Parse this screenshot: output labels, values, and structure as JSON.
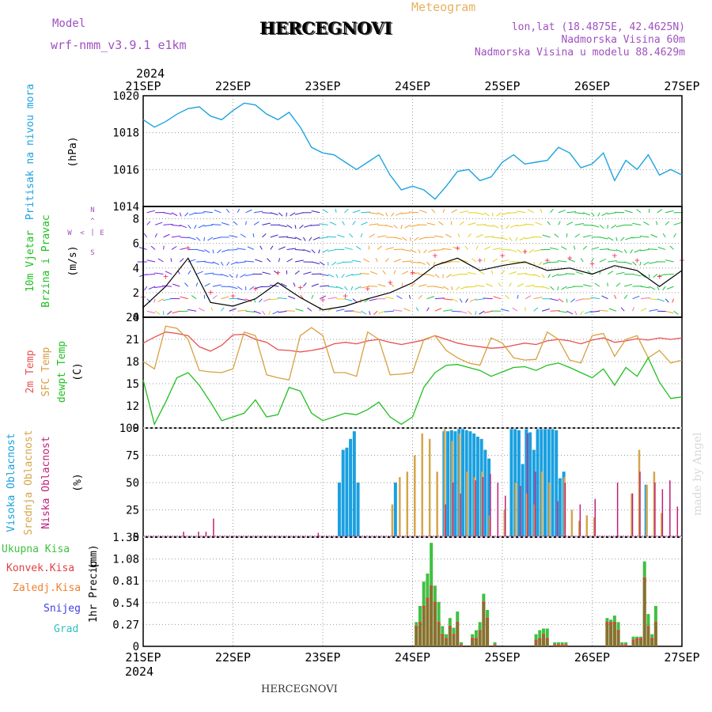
{
  "header": {
    "model_label": "Model",
    "model_name": "wrf-nmm_v3.9.1 e1km",
    "station": "HERCEGNOVI",
    "chart_kind": "Meteogram",
    "lonlat": "lon,lat (18.4875E, 42.4625N)",
    "elevation": "Nadmorska Visina 60m",
    "elevation_model": "Nadmorska Visina u modelu 88.4629m",
    "footer_station": "HERCEGNOVI",
    "watermark": "made by Angel"
  },
  "colors": {
    "pressure": "#1ca3e0",
    "wind_10m": "#20c020",
    "temp_2m": "#e85050",
    "temp_sfc": "#d8a040",
    "temp_dew": "#20c020",
    "cloud_high": "#1aa0e0",
    "cloud_mid": "#d4a64a",
    "cloud_low": "#c0207a",
    "precip_total": "#40c040",
    "precip_conv": "#e04040",
    "precip_frz": "#f08030",
    "precip_snow": "#4040e0",
    "precip_grad": "#30c0c0",
    "model_purple": "#a050c0",
    "meteogram_orange": "#e8b060"
  },
  "chart_data": [
    {
      "type": "line",
      "panel": "pressure",
      "ylabel_name": "Pritisak na nivou mora",
      "ylabel_unit": "(hPa)",
      "ylim": [
        1014,
        1020
      ],
      "yticks": [
        "1014",
        "1016",
        "1018",
        "1020"
      ],
      "x_hours": [
        0,
        3,
        6,
        9,
        12,
        15,
        18,
        21,
        24,
        27,
        30,
        33,
        36,
        39,
        42,
        45,
        48,
        51,
        54,
        57,
        60,
        63,
        66,
        69,
        72,
        75,
        78,
        81,
        84,
        87,
        90,
        93,
        96,
        99,
        102,
        105,
        108,
        111,
        114,
        117,
        120,
        123,
        126,
        129,
        132,
        135,
        138,
        141,
        144
      ],
      "values": [
        1018.7,
        1018.3,
        1018.6,
        1019.0,
        1019.3,
        1019.4,
        1018.9,
        1018.7,
        1019.2,
        1019.6,
        1019.5,
        1019.0,
        1018.7,
        1019.1,
        1018.3,
        1017.2,
        1016.9,
        1016.8,
        1016.4,
        1016.0,
        1016.4,
        1016.8,
        1015.7,
        1014.9,
        1015.1,
        1014.9,
        1014.4,
        1015.1,
        1015.9,
        1016.0,
        1015.4,
        1015.6,
        1016.4,
        1016.8,
        1016.3,
        1016.4,
        1016.5,
        1017.2,
        1016.9,
        1016.1,
        1016.3,
        1016.9,
        1015.4,
        1016.5,
        1016.0,
        1016.8,
        1015.7,
        1016.0,
        1015.7
      ]
    },
    {
      "type": "line",
      "panel": "wind",
      "ylabel_name1": "10m Vjetar",
      "ylabel_name2": "Brzina i Pravac",
      "ylabel_unit": "(m/s)",
      "compass": [
        "N",
        "^",
        "|",
        "<",
        "E",
        "W",
        "S"
      ],
      "ylim": [
        0,
        9
      ],
      "yticks": [
        "0",
        "2",
        "4",
        "6",
        "8"
      ],
      "x_hours": [
        0,
        6,
        12,
        18,
        24,
        30,
        36,
        42,
        48,
        54,
        60,
        66,
        72,
        78,
        84,
        90,
        96,
        102,
        108,
        114,
        120,
        126,
        132,
        138,
        144
      ],
      "speed": [
        0.8,
        2.5,
        4.8,
        1.2,
        0.9,
        1.5,
        2.8,
        1.6,
        0.6,
        0.9,
        1.5,
        2.0,
        2.8,
        4.2,
        4.8,
        3.8,
        4.2,
        4.5,
        3.8,
        4.0,
        3.5,
        4.2,
        3.8,
        2.5,
        3.8
      ]
    },
    {
      "type": "line",
      "panel": "temperature",
      "ylabel_name1": "2m Temp",
      "ylabel_name2": "SFC Temp",
      "ylabel_name3": "dewpt Temp",
      "ylabel_unit": "(C)",
      "ylim": [
        9,
        24
      ],
      "yticks": [
        "9",
        "12",
        "15",
        "18",
        "21",
        "24"
      ],
      "x_hours": [
        0,
        3,
        6,
        9,
        12,
        15,
        18,
        21,
        24,
        27,
        30,
        33,
        36,
        39,
        42,
        45,
        48,
        51,
        54,
        57,
        60,
        63,
        66,
        69,
        72,
        75,
        78,
        81,
        84,
        87,
        90,
        93,
        96,
        99,
        102,
        105,
        108,
        111,
        114,
        117,
        120,
        123,
        126,
        129,
        132,
        135,
        138,
        141,
        144
      ],
      "series": [
        {
          "name": "2m Temp",
          "values": [
            20.5,
            21.3,
            22.0,
            21.8,
            21.5,
            20.0,
            19.4,
            20.2,
            21.6,
            21.7,
            21.0,
            20.6,
            19.6,
            19.5,
            19.3,
            19.5,
            19.8,
            20.4,
            20.6,
            20.4,
            20.8,
            21.0,
            20.6,
            20.3,
            20.6,
            20.9,
            21.5,
            21.0,
            20.5,
            20.2,
            20.0,
            19.8,
            19.9,
            20.2,
            20.5,
            20.3,
            20.8,
            21.0,
            20.8,
            20.4,
            20.9,
            21.2,
            20.6,
            20.8,
            21.1,
            20.9,
            21.2,
            21.0,
            21.2
          ]
        },
        {
          "name": "SFC Temp",
          "values": [
            18.0,
            17.0,
            22.8,
            22.5,
            21.0,
            16.8,
            16.6,
            16.5,
            17.0,
            22.0,
            21.5,
            16.2,
            15.8,
            15.5,
            21.5,
            22.6,
            21.5,
            16.5,
            16.5,
            16.0,
            22.0,
            21.0,
            16.2,
            16.3,
            16.5,
            21.0,
            21.5,
            19.5,
            18.5,
            17.8,
            17.5,
            21.2,
            20.5,
            18.5,
            18.2,
            18.3,
            22.0,
            21.0,
            18.2,
            17.8,
            21.5,
            21.8,
            18.7,
            21.0,
            21.5,
            18.5,
            19.5,
            17.8,
            18.2
          ]
        },
        {
          "name": "dewpt Temp",
          "values": [
            15.5,
            9.5,
            12.5,
            15.8,
            16.5,
            14.8,
            12.5,
            10.0,
            10.5,
            11.0,
            12.8,
            10.5,
            10.8,
            14.5,
            14.0,
            11.0,
            10.0,
            10.5,
            11.0,
            10.8,
            11.5,
            12.5,
            10.5,
            9.5,
            10.5,
            14.5,
            16.5,
            17.5,
            17.6,
            17.2,
            16.8,
            16.0,
            16.6,
            17.2,
            17.3,
            16.8,
            17.5,
            17.8,
            17.2,
            16.5,
            15.8,
            17.0,
            14.8,
            17.2,
            16.0,
            18.5,
            15.2,
            13.0,
            13.2
          ]
        }
      ]
    },
    {
      "type": "bar",
      "panel": "clouds",
      "ylabel_name1": "Visoka Oblacnost",
      "ylabel_name2": "Srednja Oblacnost",
      "ylabel_name3": "Niska Oblacnost",
      "ylabel_unit": "(%)",
      "ylim": [
        0,
        100
      ],
      "yticks": [
        "0",
        "25",
        "50",
        "75",
        "100"
      ],
      "series": [
        {
          "name": "Visoka Oblacnost",
          "x_hours": [
            52,
            53,
            54,
            55,
            56,
            57,
            67,
            80,
            81,
            82,
            83,
            84,
            85,
            86,
            87,
            88,
            89,
            90,
            91,
            92,
            98,
            99,
            100,
            101,
            102,
            103,
            104,
            105,
            106,
            107,
            108,
            109,
            110,
            111,
            112,
            134
          ],
          "values": [
            50,
            80,
            82,
            90,
            97,
            50,
            50,
            97,
            97,
            98,
            97,
            99,
            99,
            98,
            97,
            95,
            92,
            90,
            80,
            72,
            99,
            99,
            98,
            67,
            99,
            96,
            80,
            99,
            99,
            99,
            99,
            99,
            98,
            54,
            60,
            48
          ]
        },
        {
          "name": "Srednja Oblacnost",
          "x_hours": [
            66,
            68,
            70,
            72,
            74,
            76,
            78,
            80,
            82,
            84,
            86,
            88,
            90,
            92,
            96,
            99,
            102,
            104,
            106,
            108,
            112,
            114,
            116,
            118,
            120,
            130,
            132,
            134,
            136,
            138
          ],
          "values": [
            30,
            55,
            60,
            75,
            95,
            90,
            60,
            99,
            88,
            95,
            60,
            55,
            60,
            20,
            25,
            50,
            40,
            30,
            60,
            50,
            55,
            25,
            15,
            20,
            18,
            40,
            80,
            48,
            60,
            22
          ]
        },
        {
          "name": "Niska Oblacnost",
          "x_hours": [
            10,
            14,
            16,
            18,
            46,
            80,
            82,
            84,
            88,
            90,
            92,
            94,
            96,
            100,
            102,
            104,
            110,
            112,
            116,
            120,
            126,
            130,
            132,
            136,
            138,
            140,
            142
          ],
          "values": [
            5,
            5,
            5,
            17,
            4,
            30,
            50,
            40,
            52,
            55,
            58,
            50,
            38,
            47,
            95,
            60,
            33,
            50,
            30,
            35,
            50,
            40,
            60,
            50,
            44,
            52,
            28
          ]
        }
      ]
    },
    {
      "type": "bar",
      "panel": "precip",
      "ylabel_name": "1hr Precip",
      "ylabel_unit": "(mm)",
      "legend": [
        "Ukupna Kisa",
        "Konvek.Kisa",
        "Zaledj.Kisa",
        "Snijeg",
        "Grad"
      ],
      "ylim": [
        0,
        1.35
      ],
      "yticks": [
        "0",
        "0.27",
        "0.54",
        "0.81",
        "1.08",
        "1.35"
      ],
      "x_hours": [
        73,
        74,
        75,
        76,
        77,
        78,
        79,
        80,
        81,
        82,
        83,
        84,
        85,
        88,
        89,
        90,
        91,
        92,
        94,
        105,
        106,
        107,
        108,
        110,
        111,
        112,
        113,
        124,
        125,
        126,
        127,
        128,
        129,
        131,
        132,
        133,
        134,
        135,
        136,
        137
      ],
      "total": [
        0.3,
        0.5,
        0.8,
        0.9,
        1.28,
        0.75,
        0.55,
        0.25,
        0.15,
        0.35,
        0.23,
        0.43,
        0.05,
        0.15,
        0.2,
        0.3,
        0.65,
        0.45,
        0.05,
        0.15,
        0.2,
        0.22,
        0.22,
        0.05,
        0.05,
        0.05,
        0.05,
        0.35,
        0.33,
        0.38,
        0.3,
        0.05,
        0.05,
        0.12,
        0.12,
        0.12,
        1.05,
        0.4,
        0.15,
        0.5
      ],
      "convective": [
        0.25,
        0.3,
        0.5,
        0.6,
        0.75,
        0.55,
        0.3,
        0.15,
        0.1,
        0.25,
        0.15,
        0.3,
        0.02,
        0.1,
        0.1,
        0.2,
        0.55,
        0.35,
        0.02,
        0.08,
        0.1,
        0.15,
        0.1,
        0.02,
        0.02,
        0.02,
        0.02,
        0.3,
        0.3,
        0.3,
        0.2,
        0.02,
        0.02,
        0.08,
        0.1,
        0.1,
        0.85,
        0.25,
        0.1,
        0.3
      ]
    }
  ],
  "x_axis": {
    "year": "2024",
    "date_labels": [
      "21SEP",
      "22SEP",
      "23SEP",
      "24SEP",
      "25SEP",
      "26SEP",
      "27SEP"
    ]
  }
}
